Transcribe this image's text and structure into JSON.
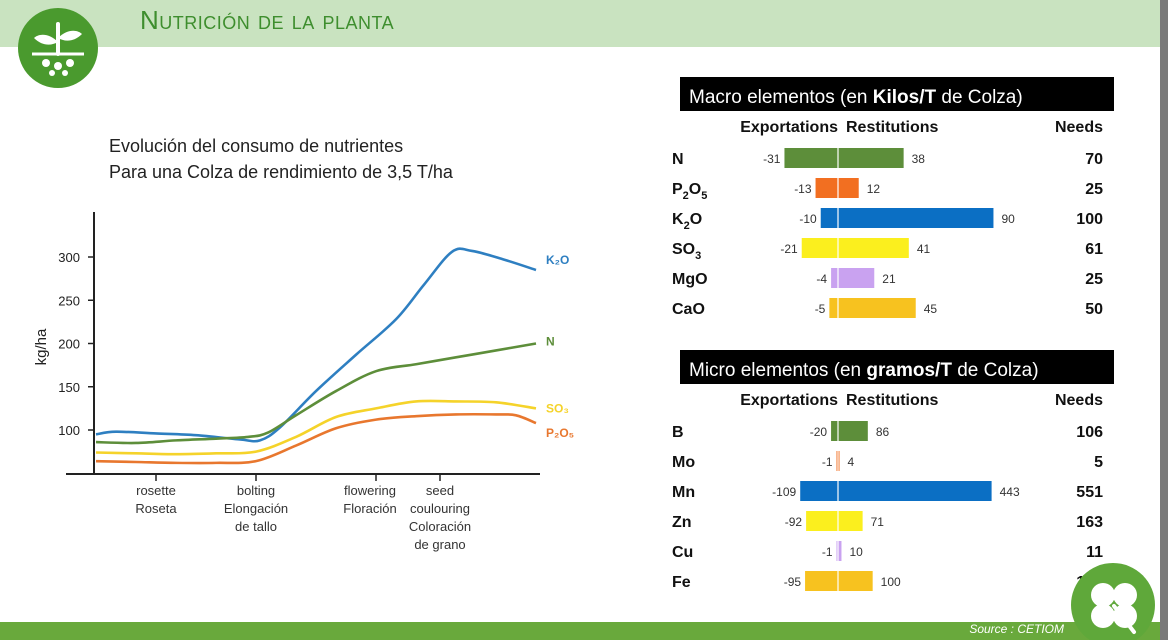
{
  "page": {
    "title": "Nutrición de la planta",
    "source": "Source : CETIOM"
  },
  "chart_data": [
    {
      "type": "line",
      "title": "Evolución del consumo de nutrientes",
      "subtitle": "Para una Colza de rendimiento de 3,5 T/ha",
      "ylabel": "kg/ha",
      "ylim": [
        50,
        340
      ],
      "yticks": [
        "100",
        "150",
        "200",
        "250",
        "300"
      ],
      "stages": [
        {
          "x": 1.5,
          "lines": [
            "rosette",
            "Roseta"
          ]
        },
        {
          "x": 4,
          "lines": [
            "bolting",
            "Elongación",
            "de tallo"
          ]
        },
        {
          "x": 7,
          "lines": [
            "flowering",
            "Floración"
          ]
        },
        {
          "x": 8.6,
          "lines": [
            "seed",
            "coulouring",
            "Coloración",
            "de grano"
          ]
        }
      ],
      "series": [
        {
          "name": "K₂O",
          "color": "#2e7fc1",
          "points": [
            [
              0,
              95
            ],
            [
              0.5,
              98
            ],
            [
              1.5,
              96
            ],
            [
              2.5,
              94
            ],
            [
              3.6,
              89
            ],
            [
              4.1,
              88
            ],
            [
              4.6,
              103
            ],
            [
              5.5,
              145
            ],
            [
              6.5,
              187
            ],
            [
              7.5,
              228
            ],
            [
              8.2,
              268
            ],
            [
              8.9,
              306
            ],
            [
              9.4,
              307
            ],
            [
              10.2,
              297
            ],
            [
              11,
              285
            ]
          ]
        },
        {
          "name": "N",
          "color": "#5d8e3a",
          "points": [
            [
              0,
              86
            ],
            [
              1,
              85
            ],
            [
              2,
              88
            ],
            [
              3,
              90
            ],
            [
              3.8,
              92
            ],
            [
              4.3,
              97
            ],
            [
              5,
              117
            ],
            [
              6,
              145
            ],
            [
              7,
              168
            ],
            [
              8,
              176
            ],
            [
              9,
              184
            ],
            [
              10,
              192
            ],
            [
              11,
              200
            ]
          ]
        },
        {
          "name": "SO₃",
          "color": "#f5d32a",
          "points": [
            [
              0,
              74
            ],
            [
              1,
              73
            ],
            [
              2,
              72
            ],
            [
              3,
              73
            ],
            [
              4,
              75
            ],
            [
              5,
              92
            ],
            [
              6,
              115
            ],
            [
              7,
              125
            ],
            [
              8,
              133
            ],
            [
              9,
              133
            ],
            [
              10,
              132
            ],
            [
              11,
              125
            ]
          ]
        },
        {
          "name": "P₂O₅",
          "color": "#e8772e",
          "points": [
            [
              0,
              64
            ],
            [
              1,
              63
            ],
            [
              2,
              62
            ],
            [
              3,
              62
            ],
            [
              4,
              64
            ],
            [
              5,
              82
            ],
            [
              6,
              102
            ],
            [
              7,
              112
            ],
            [
              8,
              116
            ],
            [
              9,
              118
            ],
            [
              10,
              118
            ],
            [
              10.5,
              117
            ],
            [
              11,
              108
            ]
          ]
        }
      ]
    },
    {
      "type": "bar",
      "title_parts": [
        "Macro elementos (en ",
        "Kilos/T",
        " de Colza)"
      ],
      "columns": {
        "exportations": "Exportations",
        "restitutions": "Restitutions",
        "needs": "Needs"
      },
      "max": 110,
      "rows": [
        {
          "label": "N",
          "sub": "",
          "exportations": -31,
          "restitutions": 38,
          "needs": 70,
          "color": "#5d8e3a"
        },
        {
          "label": "P",
          "sub": "2",
          "label2": "O",
          "sub2": "5",
          "exportations": -13,
          "restitutions": 12,
          "needs": 25,
          "color": "#f26f21"
        },
        {
          "label": "K",
          "sub": "2",
          "label2": "O",
          "sub2": "",
          "exportations": -10,
          "restitutions": 90,
          "needs": 100,
          "color": "#0b6fc4"
        },
        {
          "label": "SO",
          "sub": "3",
          "exportations": -21,
          "restitutions": 41,
          "needs": 61,
          "color": "#fbef1e"
        },
        {
          "label": "MgO",
          "sub": "",
          "exportations": -4,
          "restitutions": 21,
          "needs": 25,
          "color": "#c9a2f0"
        },
        {
          "label": "CaO",
          "sub": "",
          "exportations": -5,
          "restitutions": 45,
          "needs": 50,
          "color": "#f7c21f"
        }
      ]
    },
    {
      "type": "bar",
      "title_parts": [
        "Micro elementos (en ",
        "gramos/T",
        " de Colza)"
      ],
      "columns": {
        "exportations": "Exportations",
        "restitutions": "Restitutions",
        "needs": "Needs"
      },
      "max": 548,
      "rows": [
        {
          "label": "B",
          "sub": "",
          "exportations": -20,
          "restitutions": 86,
          "needs": 106,
          "color": "#5d8e3a"
        },
        {
          "label": "Mo",
          "sub": "",
          "exportations": -1,
          "restitutions": 4,
          "needs": 5,
          "color": "#f26f21"
        },
        {
          "label": "Mn",
          "sub": "",
          "exportations": -109,
          "restitutions": 443,
          "needs": 551,
          "color": "#0b6fc4"
        },
        {
          "label": "Zn",
          "sub": "",
          "exportations": -92,
          "restitutions": 71,
          "needs": 163,
          "color": "#fbef1e"
        },
        {
          "label": "Cu",
          "sub": "",
          "exportations": -1,
          "restitutions": 10,
          "needs": 11,
          "color": "#c9a2f0"
        },
        {
          "label": "Fe",
          "sub": "",
          "exportations": -95,
          "restitutions": 100,
          "needs": 195,
          "color": "#f7c21f"
        }
      ]
    }
  ]
}
